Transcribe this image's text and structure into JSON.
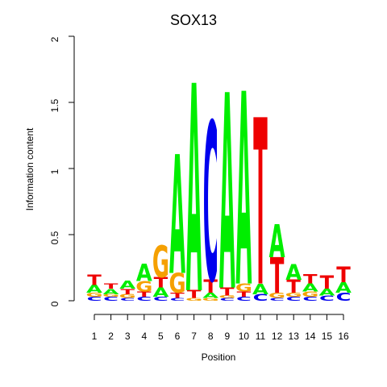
{
  "chart_data": {
    "type": "sequence-logo",
    "title": "SOX13",
    "xlabel": "Position",
    "ylabel": "Information content",
    "ylim": [
      0,
      2
    ],
    "yticks": [
      "0",
      "0.5",
      "1",
      "1.5",
      "2"
    ],
    "positions": [
      "1",
      "2",
      "3",
      "4",
      "5",
      "6",
      "7",
      "8",
      "9",
      "10",
      "11",
      "12",
      "13",
      "14",
      "15",
      "16"
    ],
    "colors": {
      "A": "#00ee00",
      "C": "#0000ee",
      "G": "#f5a000",
      "T": "#ee0000"
    },
    "stacks": [
      [
        [
          "C",
          0.03
        ],
        [
          "G",
          0.03
        ],
        [
          "A",
          0.06
        ],
        [
          "T",
          0.08
        ]
      ],
      [
        [
          "C",
          0.03
        ],
        [
          "G",
          0.02
        ],
        [
          "A",
          0.04
        ],
        [
          "T",
          0.04
        ]
      ],
      [
        [
          "C",
          0.02
        ],
        [
          "G",
          0.03
        ],
        [
          "T",
          0.04
        ],
        [
          "A",
          0.06
        ]
      ],
      [
        [
          "C",
          0.03
        ],
        [
          "T",
          0.04
        ],
        [
          "G",
          0.08
        ],
        [
          "A",
          0.13
        ]
      ],
      [
        [
          "C",
          0.03
        ],
        [
          "A",
          0.07
        ],
        [
          "T",
          0.08
        ],
        [
          "G",
          0.24
        ]
      ],
      [
        [
          "C",
          0.02
        ],
        [
          "T",
          0.04
        ],
        [
          "G",
          0.15
        ],
        [
          "A",
          0.9
        ]
      ],
      [
        [
          "G",
          0.02
        ],
        [
          "T",
          0.06
        ],
        [
          "A",
          1.57
        ]
      ],
      [
        [
          "G",
          0.02
        ],
        [
          "A",
          0.04
        ],
        [
          "T",
          0.1
        ],
        [
          "C",
          1.2
        ]
      ],
      [
        [
          "C",
          0.02
        ],
        [
          "G",
          0.02
        ],
        [
          "T",
          0.06
        ],
        [
          "A",
          1.48
        ]
      ],
      [
        [
          "C",
          0.03
        ],
        [
          "T",
          0.04
        ],
        [
          "G",
          0.06
        ],
        [
          "A",
          1.46
        ]
      ],
      [
        [
          "C",
          0.05
        ],
        [
          "A",
          0.08
        ],
        [
          "T",
          1.26
        ]
      ],
      [
        [
          "C",
          0.02
        ],
        [
          "G",
          0.04
        ],
        [
          "T",
          0.27
        ],
        [
          "A",
          0.25
        ]
      ],
      [
        [
          "C",
          0.03
        ],
        [
          "G",
          0.03
        ],
        [
          "T",
          0.1
        ],
        [
          "A",
          0.12
        ]
      ],
      [
        [
          "C",
          0.03
        ],
        [
          "G",
          0.04
        ],
        [
          "A",
          0.06
        ],
        [
          "T",
          0.07
        ]
      ],
      [
        [
          "C",
          0.04
        ],
        [
          "A",
          0.05
        ],
        [
          "T",
          0.1
        ]
      ],
      [
        [
          "C",
          0.06
        ],
        [
          "A",
          0.08
        ],
        [
          "T",
          0.12
        ]
      ]
    ]
  }
}
